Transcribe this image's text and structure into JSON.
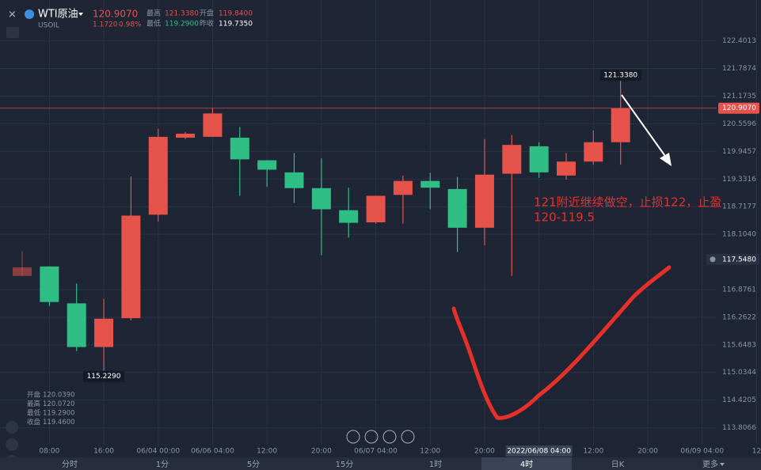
{
  "header": {
    "symbol": "WTI原油",
    "code": "USOIL",
    "price": "120.9070",
    "change": "1.1720",
    "change_pct": "0.98%",
    "stats": [
      {
        "label": "最高",
        "value": "121.3380"
      },
      {
        "label": "开盘",
        "value": "119.8400"
      },
      {
        "label": "最低",
        "value": "119.2900"
      },
      {
        "label": "昨收",
        "value": "119.7350"
      }
    ]
  },
  "info_box": [
    {
      "label": "开盘",
      "value": "120.0390"
    },
    {
      "label": "最高",
      "value": "120.0720"
    },
    {
      "label": "最低",
      "value": "119.2900"
    },
    {
      "label": "收盘",
      "value": "119.4600"
    }
  ],
  "annotation": [
    "121附近继续做空，止损122，止盈",
    "120-119.5"
  ],
  "toolbar": {
    "tabs": [
      "分时",
      "1分",
      "5分",
      "15分",
      "1时",
      "4时",
      "日K",
      "更多"
    ],
    "active": "4时"
  },
  "chart_data": {
    "type": "candlestick",
    "categories": [
      null,
      "08:00",
      null,
      "16:00",
      null,
      "06/04 00:00",
      null,
      "06/06 04:00",
      null,
      "12:00",
      null,
      "20:00",
      null,
      "06/07 04:00",
      null,
      "12:00",
      null,
      "20:00",
      null,
      "2022/06/08 04:00",
      null,
      "12:00",
      null,
      "20:00",
      null,
      "06/09 04:00",
      null,
      "12"
    ],
    "open": [
      117.18,
      117.39,
      116.57,
      115.6,
      116.24,
      118.54,
      120.25,
      120.27,
      120.25,
      119.75,
      119.48,
      119.13,
      118.64,
      118.37,
      118.98,
      119.29,
      119.11,
      118.25,
      119.45,
      120.06,
      119.41,
      119.72,
      120.15,
      null,
      null,
      null,
      null,
      null
    ],
    "high": [
      117.73,
      117.39,
      117.01,
      116.67,
      119.39,
      120.45,
      120.38,
      120.92,
      120.49,
      119.75,
      119.91,
      119.79,
      119.14,
      118.96,
      119.41,
      119.47,
      119.38,
      120.22,
      120.31,
      120.15,
      119.91,
      120.41,
      121.338,
      null,
      null,
      null,
      null,
      null
    ],
    "low": [
      117.18,
      116.51,
      115.51,
      115.229,
      116.19,
      118.39,
      120.22,
      120.27,
      118.96,
      119.16,
      118.8,
      117.64,
      118.03,
      118.34,
      118.34,
      118.66,
      117.71,
      117.86,
      117.18,
      119.36,
      119.32,
      119.65,
      119.65,
      null,
      null,
      null,
      null,
      null
    ],
    "close": [
      117.37,
      116.6,
      115.6,
      116.23,
      118.52,
      120.27,
      120.34,
      120.79,
      119.77,
      119.54,
      119.13,
      118.66,
      118.36,
      118.96,
      119.29,
      119.14,
      118.25,
      119.43,
      120.09,
      119.48,
      119.72,
      120.15,
      120.907,
      null,
      null,
      null,
      null,
      null
    ],
    "up_color": "#e5534b",
    "down_color": "#2fbf85",
    "ylim": [
      113.43,
      123.31
    ],
    "yticks": [
      122.4013,
      121.7874,
      121.1735,
      120.5596,
      119.9457,
      119.3316,
      118.7177,
      {
        "value": 118.104,
        "label": "118.1040"
      },
      116.8761,
      116.2622,
      115.6483,
      115.0344,
      114.4205,
      113.8066
    ],
    "grid": true,
    "last_price": {
      "value": 120.907,
      "label": "120.9070"
    },
    "high_marker": {
      "value": 121.338,
      "label": "121.3380"
    },
    "low_marker": {
      "value": 115.229,
      "label": "115.2290"
    },
    "alert_price": {
      "value": 117.548,
      "label": "117.5480"
    }
  }
}
